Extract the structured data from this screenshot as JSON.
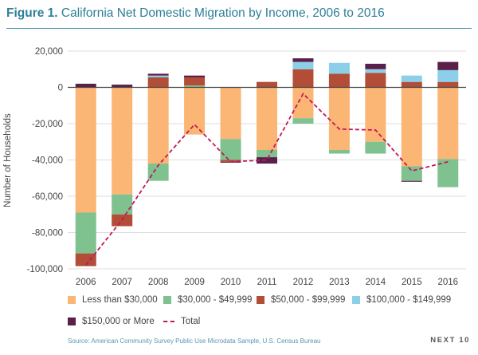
{
  "figure": {
    "label": "Figure 1.",
    "title": "California Net Domestic Migration by Income, 2006 to 2016",
    "source": "Source: American Community Survey Public Use Microdata Sample, U.S. Census Bureau",
    "brand": "NEXT 10"
  },
  "chart_data": {
    "type": "bar",
    "stacked": true,
    "title": "California Net Domestic Migration by Income, 2006 to 2016",
    "xlabel": "",
    "ylabel": "Number of Households",
    "ylim": [
      -100000,
      20000
    ],
    "yticks": [
      20000,
      0,
      -20000,
      -40000,
      -60000,
      -80000,
      -100000
    ],
    "ytick_labels": [
      "20,000",
      "0",
      "-20,000",
      "-40,000",
      "-60,000",
      "-80,000",
      "-100,000"
    ],
    "grid": true,
    "legend_position": "bottom",
    "categories": [
      "2006",
      "2007",
      "2008",
      "2009",
      "2010",
      "2011",
      "2012",
      "2013",
      "2014",
      "2015",
      "2016"
    ],
    "series": [
      {
        "name": "Less than $30,000",
        "color": "#fbb574",
        "values": [
          -69000,
          -59000,
          -42000,
          -26000,
          -28500,
          -34500,
          -17000,
          -34500,
          -30000,
          -43500,
          -39500
        ]
      },
      {
        "name": "$30,000 - $49,999",
        "color": "#7fc28f",
        "values": [
          -22500,
          -11000,
          -9500,
          1000,
          -11500,
          -4000,
          -3000,
          -2000,
          -6500,
          -8000,
          -15500
        ]
      },
      {
        "name": "$50,000 - $99,999",
        "color": "#b24d37",
        "values": [
          -7000,
          -6500,
          5500,
          4500,
          -1000,
          3000,
          10000,
          7500,
          8000,
          3000,
          3000
        ]
      },
      {
        "name": "$100,000 - $149,999",
        "color": "#8ccfe8",
        "values": [
          0,
          0,
          1000,
          0,
          0,
          0,
          4000,
          6000,
          2000,
          3500,
          6500
        ]
      },
      {
        "name": "$150,000 or More",
        "color": "#5a2049",
        "values": [
          2000,
          1500,
          1000,
          1000,
          -500,
          -3500,
          2000,
          0,
          3000,
          -500,
          4500
        ]
      }
    ],
    "total": {
      "name": "Total",
      "color": "#c2185b",
      "values": [
        -98000,
        -73000,
        -43000,
        -20500,
        -41000,
        -40000,
        -3500,
        -23000,
        -23500,
        -46000,
        -41000
      ]
    }
  }
}
